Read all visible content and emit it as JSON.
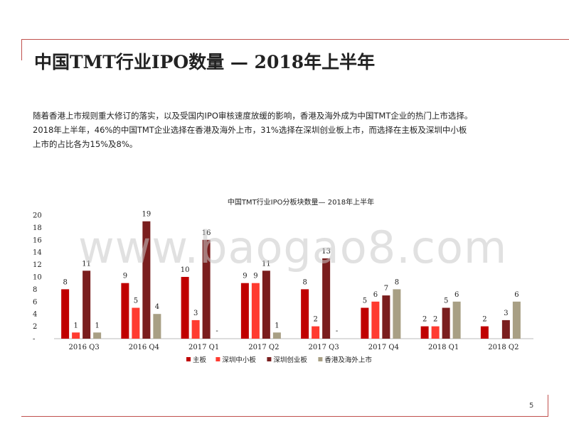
{
  "slide": {
    "title": "中国TMT行业IPO数量 — 2018年上半年",
    "paragraph_lines": [
      "随着香港上市规则重大修订的落实，以及受国内IPO审核速度放缓的影响，香港及海外成为中国TMT企业的热门上市选择。",
      "2018年上半年，46%的中国TMT企业选择在香港及海外上市，31%选择在深圳创业板上市，而选择在主板及深圳中小板",
      "上市的占比各为15%及8%。"
    ],
    "watermark": "www.baogao8.com",
    "page_number": "5"
  },
  "colors": {
    "accent_line": "#c0504d",
    "main_board": "#c00000",
    "sme_board": "#ff3b30",
    "chinext": "#7a1e1e",
    "hk_overseas": "#a89f84"
  },
  "chart_data": {
    "type": "bar",
    "title": "中国TMT行业IPO分板块数量— 2018年上半年",
    "categories": [
      "2016 Q3",
      "2016 Q4",
      "2017 Q1",
      "2017 Q2",
      "2017 Q3",
      "2017 Q4",
      "2018 Q1",
      "2018 Q2"
    ],
    "series": [
      {
        "name": "主板",
        "color_key": "main_board",
        "values": [
          8,
          9,
          10,
          9,
          8,
          5,
          2,
          2
        ]
      },
      {
        "name": "深圳中小板",
        "color_key": "sme_board",
        "values": [
          1,
          5,
          3,
          9,
          2,
          6,
          2,
          0
        ]
      },
      {
        "name": "深圳创业板",
        "color_key": "chinext",
        "values": [
          11,
          19,
          16,
          11,
          13,
          7,
          5,
          3
        ]
      },
      {
        "name": "香港及海外上市",
        "color_key": "hk_overseas",
        "values": [
          1,
          4,
          0,
          1,
          0,
          8,
          6,
          6
        ]
      }
    ],
    "data_labels": [
      [
        "8",
        "9",
        "10",
        "9",
        "8",
        "5",
        "2",
        "2"
      ],
      [
        "1",
        "5",
        "3",
        "9",
        "2",
        "6",
        "2",
        ""
      ],
      [
        "11",
        "19",
        "16",
        "11",
        "13",
        "7",
        "5",
        "3"
      ],
      [
        "1",
        "4",
        "-",
        "1",
        "-",
        "8",
        "6",
        "6"
      ]
    ],
    "y_ticks": [
      "-",
      "2",
      "4",
      "6",
      "8",
      "10",
      "12",
      "14",
      "16",
      "18",
      "20"
    ],
    "ylim": [
      0,
      20
    ],
    "legend_position": "bottom",
    "grid": false
  }
}
